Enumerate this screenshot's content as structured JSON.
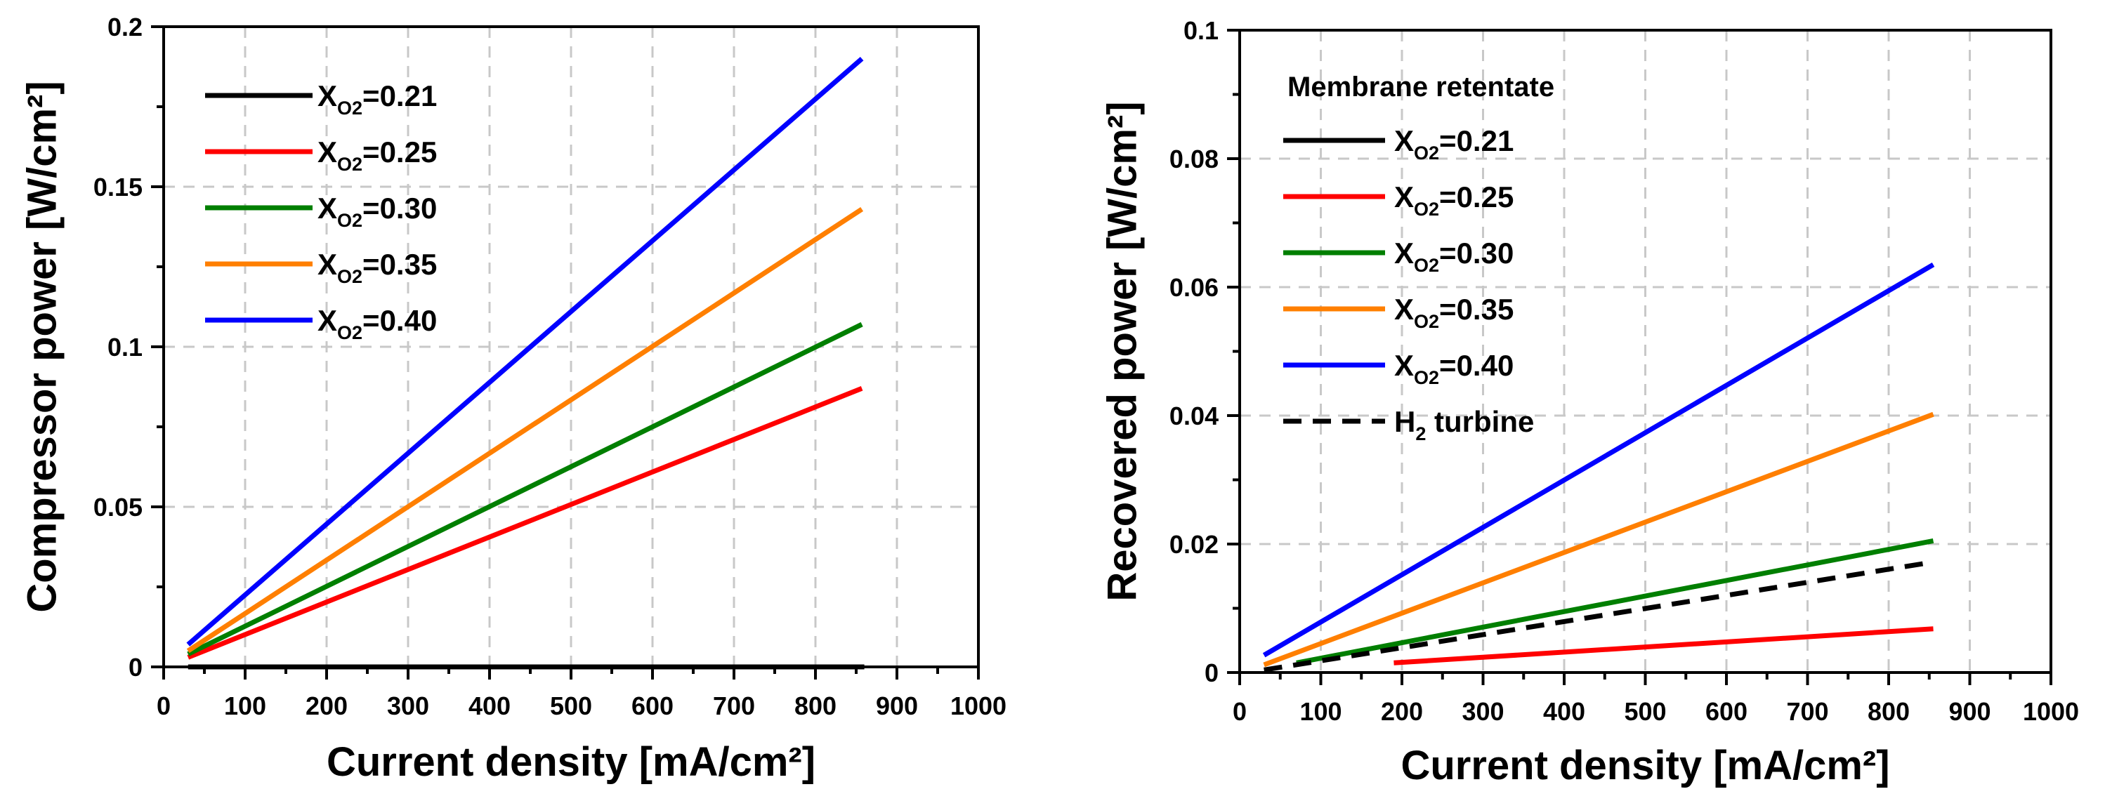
{
  "colors": {
    "x21": "#000000",
    "x25": "#ff0000",
    "x30": "#007f00",
    "x35": "#ff7f00",
    "x40": "#0000ff",
    "turbine": "#000000",
    "grid": "#c8c8c8"
  },
  "chart_data": [
    {
      "type": "line",
      "xlabel": "Current density [mA/cm²]",
      "ylabel": "Compressor power [W/cm²]",
      "xlim": [
        0,
        1000
      ],
      "ylim": [
        0,
        0.2
      ],
      "xticks": [
        "0",
        "100",
        "200",
        "300",
        "400",
        "500",
        "600",
        "700",
        "800",
        "900",
        "1000"
      ],
      "yticks": [
        "0",
        "0.05",
        "0.1",
        "0.15",
        "0.2"
      ],
      "grid": true,
      "legend_position": "top-left",
      "series": [
        {
          "name": "XO2=0.21",
          "label_main": "X",
          "label_sub": "O2",
          "label_tail": "=0.21",
          "color_key": "x21",
          "dashed": false,
          "x": [
            30,
            860
          ],
          "y": [
            0,
            0
          ]
        },
        {
          "name": "XO2=0.25",
          "label_main": "X",
          "label_sub": "O2",
          "label_tail": "=0.25",
          "color_key": "x25",
          "dashed": false,
          "x": [
            30,
            857
          ],
          "y": [
            0.003,
            0.087
          ]
        },
        {
          "name": "XO2=0.30",
          "label_main": "X",
          "label_sub": "O2",
          "label_tail": "=0.30",
          "color_key": "x30",
          "dashed": false,
          "x": [
            30,
            857
          ],
          "y": [
            0.004,
            0.107
          ]
        },
        {
          "name": "XO2=0.35",
          "label_main": "X",
          "label_sub": "O2",
          "label_tail": "=0.35",
          "color_key": "x35",
          "dashed": false,
          "x": [
            30,
            857
          ],
          "y": [
            0.005,
            0.143
          ]
        },
        {
          "name": "XO2=0.40",
          "label_main": "X",
          "label_sub": "O2",
          "label_tail": "=0.40",
          "color_key": "x40",
          "dashed": false,
          "x": [
            30,
            857
          ],
          "y": [
            0.007,
            0.19
          ]
        }
      ]
    },
    {
      "type": "line",
      "xlabel": "Current density [mA/cm²]",
      "ylabel": "Recovered power [W/cm²]",
      "xlim": [
        0,
        1000
      ],
      "ylim": [
        0,
        0.1
      ],
      "xticks": [
        "0",
        "100",
        "200",
        "300",
        "400",
        "500",
        "600",
        "700",
        "800",
        "900",
        "1000"
      ],
      "yticks": [
        "0",
        "0.02",
        "0.04",
        "0.06",
        "0.08",
        "0.1"
      ],
      "grid": true,
      "legend_title": "Membrane retentate",
      "legend_position": "top-left",
      "series": [
        {
          "name": "XO2=0.21",
          "label_main": "X",
          "label_sub": "O2",
          "label_tail": "=0.21",
          "color_key": "x21",
          "dashed": false,
          "x": [],
          "y": []
        },
        {
          "name": "XO2=0.25",
          "label_main": "X",
          "label_sub": "O2",
          "label_tail": "=0.25",
          "color_key": "x25",
          "dashed": false,
          "x": [
            190,
            855
          ],
          "y": [
            0.0015,
            0.0068
          ]
        },
        {
          "name": "XO2=0.30",
          "label_main": "X",
          "label_sub": "O2",
          "label_tail": "=0.30",
          "color_key": "x30",
          "dashed": false,
          "x": [
            70,
            855
          ],
          "y": [
            0.0015,
            0.0205
          ]
        },
        {
          "name": "XO2=0.35",
          "label_main": "X",
          "label_sub": "O2",
          "label_tail": "=0.35",
          "color_key": "x35",
          "dashed": false,
          "x": [
            30,
            855
          ],
          "y": [
            0.0012,
            0.0402
          ]
        },
        {
          "name": "XO2=0.40",
          "label_main": "X",
          "label_sub": "O2",
          "label_tail": "=0.40",
          "color_key": "x40",
          "dashed": false,
          "x": [
            30,
            855
          ],
          "y": [
            0.0027,
            0.0635
          ]
        },
        {
          "name": "H2 turbine",
          "label_main": "H",
          "label_sub": "2",
          "label_tail": " turbine",
          "color_key": "turbine",
          "dashed": true,
          "x": [
            30,
            855
          ],
          "y": [
            0.0004,
            0.0172
          ]
        }
      ]
    }
  ]
}
